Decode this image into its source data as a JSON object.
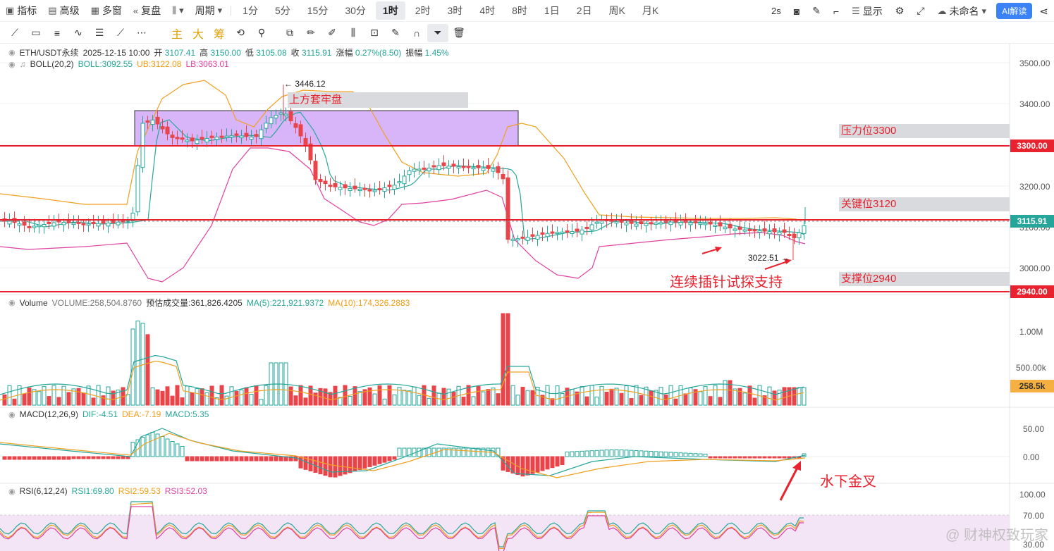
{
  "toolbar1": {
    "indicators": "指标",
    "advanced": "高级",
    "multi_window": "多窗",
    "replay": "复盘",
    "period_menu": "周期",
    "periods": [
      "1分",
      "5分",
      "15分",
      "30分",
      "1时",
      "2时",
      "3时",
      "4时",
      "8时",
      "1日",
      "2日",
      "周K",
      "月K"
    ],
    "active_period": "1时",
    "interval": "2s",
    "display": "显示",
    "layout_name": "未命名",
    "ai_label": "AI解读"
  },
  "toolbar2": {
    "zh_tools": [
      "主",
      "大",
      "筹"
    ]
  },
  "legend": {
    "symbol": "ETH/USDT永续",
    "datetime": "2025-12-15 10:00",
    "open_label": "开",
    "open": "3107.41",
    "high_label": "高",
    "high": "3150.00",
    "low_label": "低",
    "low": "3105.08",
    "close_label": "收",
    "close": "3115.91",
    "change_label": "涨幅",
    "change": "0.27%(8.50)",
    "amp_label": "振幅",
    "amp": "1.45%",
    "boll_name": "BOLL(20,2)",
    "boll": "BOLL:3092.55",
    "ub": "UB:3122.08",
    "lb": "LB:3063.01",
    "vol_name": "Volume",
    "vol": "VOLUME:258,504.8760",
    "vol_est": "预估成交量:361,826.4205",
    "vol_ma5": "MA(5):221,921.9372",
    "vol_ma10": "MA(10):174,326.2883",
    "macd_name": "MACD(12,26,9)",
    "dif": "DIF:-4.51",
    "dea": "DEA:-7.19",
    "macd": "MACD:5.35",
    "rsi_name": "RSI(6,12,24)",
    "rsi1": "RSI1:69.80",
    "rsi2": "RSI2:59.53",
    "rsi3": "RSI3:52.03"
  },
  "annotations": {
    "high_mark": "3446.12",
    "low_mark": "3022.51",
    "top_box": "上方套牢盘",
    "resistance": "压力位3300",
    "key_level": "关键位3120",
    "support": "支撑位2940",
    "probe_text": "连续插针试探支持",
    "golden_cross": "水下金叉"
  },
  "price_axis": {
    "ticks": [
      "3500.00",
      "3400.00",
      "3200.00",
      "3100.00",
      "3000.00"
    ],
    "tag_3300": "3300.00",
    "tag_current": "3115.91",
    "tag_2940": "2940.00"
  },
  "volume_axis": {
    "ticks": [
      "1.00M",
      "500.00k"
    ],
    "current": "258.5k"
  },
  "macd_axis": {
    "ticks": [
      "50.00",
      "0.00"
    ]
  },
  "rsi_axis": {
    "ticks": [
      "100.00",
      "70.00",
      "30.00"
    ]
  },
  "watermark": "@ 财神权致玩家",
  "colors": {
    "up": "#26a69a",
    "down": "#e8444a",
    "boll_mid": "#26a69a",
    "boll_ub": "#f0a020",
    "boll_lb": "#e040a0",
    "level": "#e8222e",
    "box": "#d8b4f8"
  }
}
